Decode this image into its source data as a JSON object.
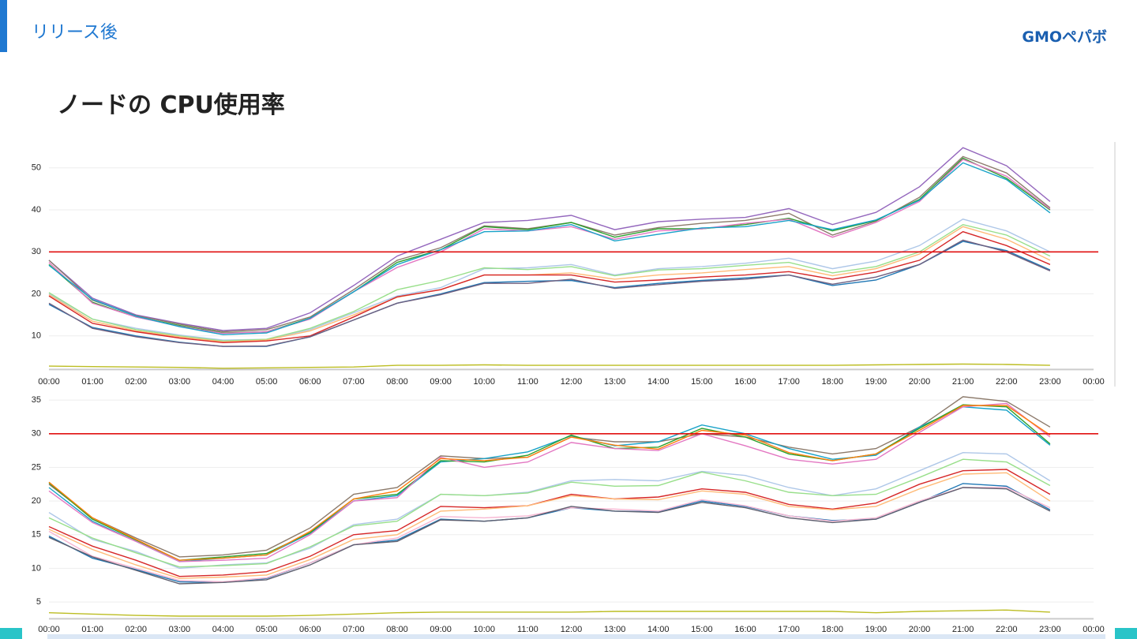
{
  "header": {
    "section": "リリース後",
    "logo": "GMOペパボ"
  },
  "title": "ノードの CPU使用率",
  "chart_data": [
    {
      "type": "line",
      "categories": [
        "00:00",
        "01:00",
        "02:00",
        "03:00",
        "04:00",
        "05:00",
        "06:00",
        "07:00",
        "08:00",
        "09:00",
        "10:00",
        "11:00",
        "12:00",
        "13:00",
        "14:00",
        "15:00",
        "16:00",
        "17:00",
        "18:00",
        "19:00",
        "20:00",
        "21:00",
        "22:00",
        "23:00",
        "00:00"
      ],
      "ylim": [
        2,
        55.5
      ],
      "yticks": [
        10,
        20,
        30,
        40,
        50
      ],
      "grid": true,
      "reference_line": {
        "value": 30,
        "color": "#e01010"
      },
      "series": [
        {
          "color": "#9467bd",
          "values": [
            28,
            19,
            15,
            13,
            11.3,
            11.8,
            15.5,
            22,
            29,
            33,
            37,
            37.5,
            38.7,
            35.3,
            37.2,
            37.8,
            38.2,
            40.3,
            36.5,
            39.4,
            45.5,
            54.8,
            50.5,
            42,
            null
          ]
        },
        {
          "color": "#8c7a6b",
          "values": [
            28,
            18.5,
            14.8,
            12.8,
            11,
            11.5,
            14.5,
            21,
            28,
            31,
            36.2,
            35.5,
            37,
            34,
            35.8,
            36.8,
            37.5,
            39.2,
            34,
            37.3,
            43,
            52.7,
            48.8,
            40.5,
            null
          ]
        },
        {
          "color": "#2ca02c",
          "values": [
            27,
            18,
            14.5,
            12.5,
            10.7,
            11,
            14.2,
            20.5,
            27.5,
            30.5,
            36,
            35.3,
            37,
            33.5,
            35.5,
            35.5,
            36.5,
            38,
            35,
            37.5,
            42.5,
            52.3,
            47.5,
            40,
            null
          ]
        },
        {
          "color": "#e377c2",
          "values": [
            27.5,
            17.8,
            14.5,
            12.3,
            10.6,
            11,
            14,
            20.5,
            26.3,
            30,
            35.5,
            35,
            36,
            33,
            35,
            35.5,
            36.8,
            37.8,
            33.5,
            37,
            42,
            52,
            48,
            40.2,
            null
          ]
        },
        {
          "color": "#17a2c8",
          "values": [
            26.8,
            18.7,
            14.7,
            12.2,
            10.3,
            10.7,
            14.2,
            20.5,
            27,
            30.5,
            34.8,
            35,
            36.5,
            32.6,
            34.2,
            35.7,
            36,
            37.5,
            35.3,
            37.6,
            42.3,
            51.2,
            47.2,
            39.3,
            null
          ]
        },
        {
          "color": "#aec7e8",
          "values": [
            20,
            14,
            11.8,
            10.2,
            9,
            9.2,
            11.5,
            15.5,
            19.5,
            21.5,
            26,
            26.2,
            27,
            24.5,
            26,
            26.5,
            27.3,
            28.5,
            26,
            27.8,
            31.5,
            37.8,
            35,
            30,
            null
          ]
        },
        {
          "color": "#98df8a",
          "values": [
            20.3,
            14,
            11.5,
            10,
            8.8,
            9.2,
            11.8,
            15.8,
            21,
            23.2,
            26.2,
            25.8,
            26.5,
            24.3,
            25.7,
            26,
            26.8,
            27.5,
            25,
            26.5,
            30,
            36.5,
            34,
            29,
            null
          ]
        },
        {
          "color": "#ffbb78",
          "values": [
            19.8,
            13.5,
            11.2,
            9.8,
            8.6,
            9,
            11.2,
            15,
            19.2,
            21,
            24.5,
            24.5,
            25,
            23.5,
            24.5,
            25,
            25.8,
            26.5,
            24.3,
            26,
            29.5,
            36,
            33,
            28,
            null
          ]
        },
        {
          "color": "#d62728",
          "values": [
            19.5,
            13,
            11,
            9.5,
            8.4,
            8.8,
            10,
            14.5,
            19.3,
            21,
            24.5,
            24.5,
            24.5,
            22.8,
            23.3,
            24,
            24.5,
            25.3,
            23.5,
            25.2,
            28,
            34.8,
            31.5,
            27,
            null
          ]
        },
        {
          "color": "#1f77b4",
          "values": [
            17.5,
            12,
            10,
            8.5,
            7.5,
            7.5,
            9.8,
            13.8,
            17.8,
            20,
            22.7,
            23,
            23.2,
            21.5,
            22.5,
            23.2,
            23.8,
            24.5,
            22,
            23.3,
            27,
            32.5,
            30.3,
            25.7,
            null
          ]
        },
        {
          "color": "#6f5f7f",
          "values": [
            17.8,
            11.8,
            9.8,
            8.4,
            7.5,
            7.6,
            9.8,
            13.8,
            17.8,
            19.8,
            22.5,
            22.5,
            23.5,
            21.3,
            22.2,
            23,
            23.5,
            24.5,
            22.3,
            24,
            27,
            32.8,
            30,
            25.5,
            null
          ]
        },
        {
          "color": "#bcbd22",
          "values": [
            2.8,
            2.7,
            2.6,
            2.5,
            2.3,
            2.4,
            2.5,
            2.6,
            3.0,
            3.0,
            3.1,
            3.0,
            3.0,
            3.0,
            3.0,
            3.0,
            3.0,
            3.0,
            3.0,
            3.1,
            3.2,
            3.3,
            3.2,
            3.0,
            null
          ]
        }
      ]
    },
    {
      "type": "line",
      "categories": [
        "00:00",
        "01:00",
        "02:00",
        "03:00",
        "04:00",
        "05:00",
        "06:00",
        "07:00",
        "08:00",
        "09:00",
        "10:00",
        "11:00",
        "12:00",
        "13:00",
        "14:00",
        "15:00",
        "16:00",
        "17:00",
        "18:00",
        "19:00",
        "20:00",
        "21:00",
        "22:00",
        "23:00",
        "00:00"
      ],
      "ylim": [
        2.5,
        35.8
      ],
      "yticks": [
        5,
        10,
        15,
        20,
        25,
        30,
        35
      ],
      "grid": true,
      "reference_line": {
        "value": 30,
        "color": "#e01010"
      },
      "series": [
        {
          "color": "#8c7a6b",
          "values": [
            22.5,
            17.5,
            14.5,
            11.7,
            12,
            12.7,
            16,
            21,
            22,
            26.7,
            26.3,
            26.5,
            29.5,
            28.8,
            28.8,
            30,
            29.5,
            28,
            27,
            27.8,
            31,
            35.5,
            34.8,
            31,
            null
          ]
        },
        {
          "color": "#17a2c8",
          "values": [
            22,
            17,
            14,
            11,
            11.5,
            12,
            15.2,
            20,
            20.8,
            25.8,
            26.3,
            27.3,
            29.7,
            28.2,
            28.8,
            31.3,
            30,
            27.8,
            26.2,
            26.8,
            31,
            34,
            33.5,
            28.3,
            null
          ]
        },
        {
          "color": "#2ca02c",
          "values": [
            22.7,
            17.3,
            14.2,
            11.2,
            11.7,
            12.2,
            15.3,
            20.3,
            21,
            26,
            25.8,
            26.8,
            29.8,
            27.8,
            28,
            30.8,
            29.5,
            27,
            26,
            27,
            30.8,
            34.3,
            34,
            28.5,
            null
          ]
        },
        {
          "color": "#e377c2",
          "values": [
            21.5,
            16.8,
            14,
            11,
            11.2,
            11.5,
            15,
            20,
            20.5,
            26.5,
            25,
            25.8,
            28.7,
            27.8,
            27.5,
            30,
            28.2,
            26.2,
            25.5,
            26.2,
            30.2,
            34,
            34.5,
            29.5,
            null
          ]
        },
        {
          "color": "#ff7f0e",
          "values": [
            22.8,
            17.5,
            14.3,
            11.2,
            11.5,
            12,
            15.5,
            20.3,
            21.5,
            26.3,
            26,
            26.5,
            29.5,
            28.3,
            27.7,
            30.5,
            29.8,
            27.2,
            26,
            27,
            30.5,
            34.2,
            34.2,
            29.8,
            null
          ]
        },
        {
          "color": "#aec7e8",
          "values": [
            18.3,
            14.3,
            12.5,
            10,
            10.5,
            10.8,
            13,
            16.5,
            17.3,
            21,
            20.8,
            21.3,
            23,
            23.2,
            23,
            24.4,
            23.8,
            22,
            20.8,
            21.8,
            24.5,
            27.2,
            27,
            23,
            null
          ]
        },
        {
          "color": "#98df8a",
          "values": [
            17.5,
            14.5,
            12.3,
            10.2,
            10.4,
            10.7,
            13.2,
            16.3,
            17,
            21,
            20.8,
            21.2,
            22.8,
            22.2,
            22.3,
            24.3,
            23,
            21.3,
            20.8,
            21,
            23.5,
            26.2,
            25.8,
            22.3,
            null
          ]
        },
        {
          "color": "#d62728",
          "values": [
            16.2,
            13.3,
            11.2,
            8.8,
            9,
            9.5,
            11.8,
            15,
            15.6,
            19.2,
            19,
            19.3,
            21,
            20.3,
            20.6,
            21.8,
            21.3,
            19.5,
            18.8,
            19.7,
            22.5,
            24.5,
            24.7,
            21,
            null
          ]
        },
        {
          "color": "#ffbb78",
          "values": [
            15.8,
            12.8,
            10.5,
            8.5,
            8.7,
            9,
            11.3,
            14.3,
            15,
            18.5,
            18.8,
            19.3,
            20.8,
            20.3,
            20.2,
            21.5,
            21,
            19.2,
            18.7,
            19.2,
            21.8,
            24,
            24.2,
            20,
            null
          ]
        },
        {
          "color": "#1f77b4",
          "values": [
            14.8,
            11.5,
            9.8,
            8,
            7.9,
            8.5,
            10.8,
            13.5,
            14.2,
            17.3,
            17,
            17.5,
            19,
            18.5,
            18.4,
            20,
            19.2,
            17.8,
            17.1,
            17.3,
            19.8,
            22.6,
            22.2,
            18.7,
            null
          ]
        },
        {
          "color": "#f7b6d2",
          "values": [
            15.5,
            11.8,
            10,
            8.2,
            8,
            8.6,
            10.8,
            13.5,
            14.5,
            17.7,
            17.5,
            17.8,
            19,
            18.8,
            18.5,
            20.2,
            19.3,
            17.8,
            17,
            17.5,
            20,
            22,
            22,
            19,
            null
          ]
        },
        {
          "color": "#5f5f6f",
          "values": [
            14.6,
            11.7,
            9.7,
            7.7,
            7.9,
            8.3,
            10.5,
            13.5,
            14,
            17.2,
            17,
            17.5,
            19.2,
            18.5,
            18.3,
            19.8,
            19,
            17.5,
            16.8,
            17.3,
            19.8,
            22,
            21.8,
            18.5,
            null
          ]
        },
        {
          "color": "#bcbd22",
          "values": [
            3.4,
            3.2,
            3.0,
            2.9,
            2.9,
            2.9,
            3.0,
            3.2,
            3.4,
            3.5,
            3.5,
            3.5,
            3.5,
            3.6,
            3.6,
            3.6,
            3.6,
            3.6,
            3.6,
            3.4,
            3.6,
            3.7,
            3.8,
            3.5,
            null
          ]
        }
      ]
    }
  ]
}
